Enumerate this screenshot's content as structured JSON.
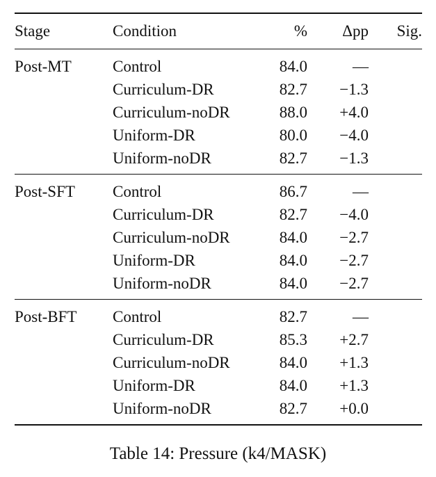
{
  "table": {
    "headers": {
      "stage": "Stage",
      "condition": "Condition",
      "percent": "%",
      "delta_pp": "Δpp",
      "sig": "Sig."
    },
    "sections": [
      {
        "stage": "Post-MT",
        "rows": [
          {
            "condition": "Control",
            "percent": "84.0",
            "delta_pp": "—",
            "sig": ""
          },
          {
            "condition": "Curriculum-DR",
            "percent": "82.7",
            "delta_pp": "−1.3",
            "sig": ""
          },
          {
            "condition": "Curriculum-noDR",
            "percent": "88.0",
            "delta_pp": "+4.0",
            "sig": ""
          },
          {
            "condition": "Uniform-DR",
            "percent": "80.0",
            "delta_pp": "−4.0",
            "sig": ""
          },
          {
            "condition": "Uniform-noDR",
            "percent": "82.7",
            "delta_pp": "−1.3",
            "sig": ""
          }
        ]
      },
      {
        "stage": "Post-SFT",
        "rows": [
          {
            "condition": "Control",
            "percent": "86.7",
            "delta_pp": "—",
            "sig": ""
          },
          {
            "condition": "Curriculum-DR",
            "percent": "82.7",
            "delta_pp": "−4.0",
            "sig": ""
          },
          {
            "condition": "Curriculum-noDR",
            "percent": "84.0",
            "delta_pp": "−2.7",
            "sig": ""
          },
          {
            "condition": "Uniform-DR",
            "percent": "84.0",
            "delta_pp": "−2.7",
            "sig": ""
          },
          {
            "condition": "Uniform-noDR",
            "percent": "84.0",
            "delta_pp": "−2.7",
            "sig": ""
          }
        ]
      },
      {
        "stage": "Post-BFT",
        "rows": [
          {
            "condition": "Control",
            "percent": "82.7",
            "delta_pp": "—",
            "sig": ""
          },
          {
            "condition": "Curriculum-DR",
            "percent": "85.3",
            "delta_pp": "+2.7",
            "sig": ""
          },
          {
            "condition": "Curriculum-noDR",
            "percent": "84.0",
            "delta_pp": "+1.3",
            "sig": ""
          },
          {
            "condition": "Uniform-DR",
            "percent": "84.0",
            "delta_pp": "+1.3",
            "sig": ""
          },
          {
            "condition": "Uniform-noDR",
            "percent": "82.7",
            "delta_pp": "+0.0",
            "sig": ""
          }
        ]
      }
    ]
  },
  "caption": "Table 14: Pressure (k4/MASK)"
}
